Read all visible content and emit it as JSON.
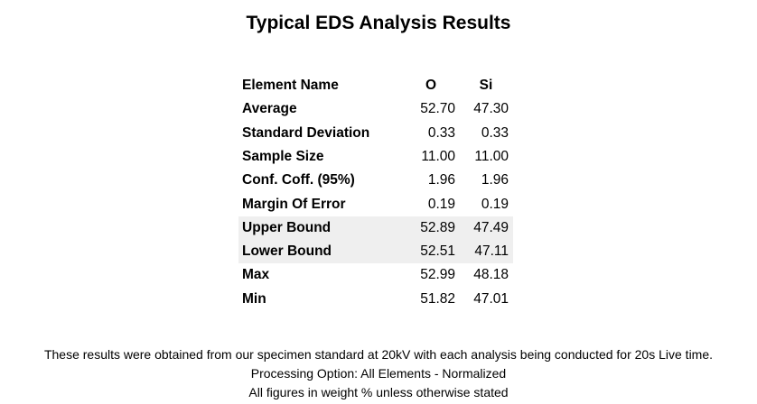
{
  "header": {
    "title": "Typical EDS Analysis Results"
  },
  "table": {
    "columns": [
      "Element Name",
      "O",
      "Si"
    ],
    "rows": [
      [
        "Average",
        "52.70",
        "47.30"
      ],
      [
        "Standard Deviation",
        "0.33",
        "0.33"
      ],
      [
        "Sample Size",
        "11.00",
        "11.00"
      ],
      [
        "Conf. Coff. (95%)",
        "1.96",
        "1.96"
      ],
      [
        "Margin Of Error",
        "0.19",
        "0.19"
      ],
      [
        "Upper Bound",
        "52.89",
        "47.49"
      ],
      [
        "Lower Bound",
        "52.51",
        "47.11"
      ],
      [
        "Max",
        "52.99",
        "48.18"
      ],
      [
        "Min",
        "51.82",
        "47.01"
      ]
    ]
  },
  "footer": {
    "lines": [
      "These results were obtained from our specimen standard at 20kV with each analysis being conducted for 20s Live time.",
      "Processing Option: All Elements - Normalized",
      "All figures in weight % unless otherwise stated"
    ]
  }
}
